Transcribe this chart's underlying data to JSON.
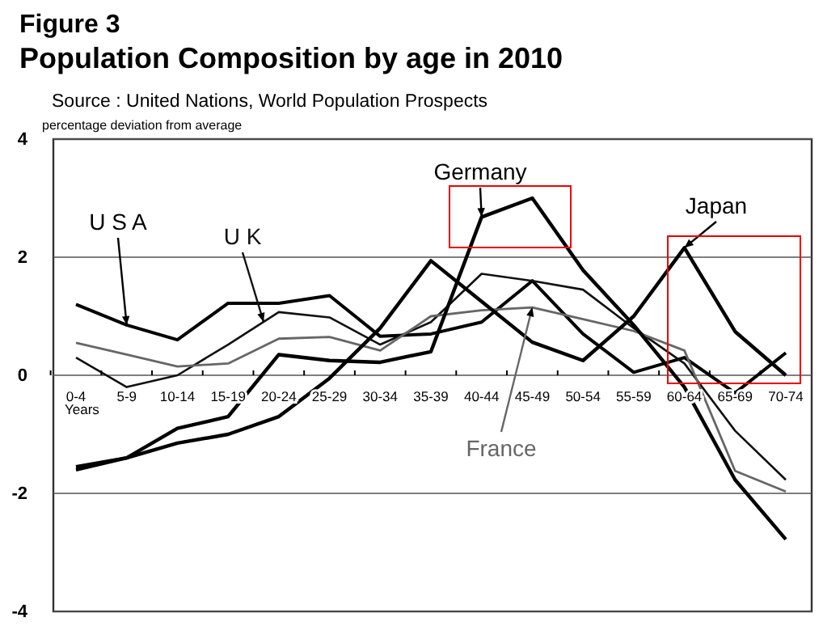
{
  "chart_data": {
    "type": "line",
    "title": "Figure 3",
    "subtitle": "Population Composition by age in 2010",
    "ylabel": "percentage deviation from average",
    "annotations": [
      "Source : United Nations, World Population Prospects",
      "Years"
    ],
    "categories": [
      "0-4",
      "5-9",
      "10-14",
      "15-19",
      "20-24",
      "25-29",
      "30-34",
      "35-39",
      "40-44",
      "45-49",
      "50-54",
      "55-59",
      "60-64",
      "65-69",
      "70-74"
    ],
    "ylim": [
      -4,
      4
    ],
    "yticks": [
      -4,
      -2,
      0,
      2,
      4
    ],
    "grid": "y",
    "marker": "none",
    "line_style": "solid",
    "series": [
      {
        "name": "U S A",
        "color": "#000000",
        "values": [
          1.2,
          0.85,
          0.6,
          1.22,
          1.22,
          1.35,
          0.66,
          0.7,
          0.9,
          1.6,
          0.7,
          0.05,
          0.3,
          -0.3,
          0.38
        ]
      },
      {
        "name": "U K",
        "color": "#111111",
        "values": [
          0.3,
          -0.2,
          0,
          0.52,
          1.07,
          0.98,
          0.52,
          0.9,
          1.72,
          1.6,
          1.45,
          0.8,
          0.2,
          -0.94,
          -1.77
        ]
      },
      {
        "name": "France",
        "color": "#666666",
        "values": [
          0.55,
          0.35,
          0.15,
          0.2,
          0.62,
          0.65,
          0.42,
          1.0,
          1.1,
          1.15,
          0.95,
          0.75,
          0.42,
          -1.62,
          -1.97
        ]
      },
      {
        "name": "Germany",
        "color": "#000000",
        "values": [
          -1.55,
          -1.4,
          -0.9,
          -0.7,
          0.35,
          0.25,
          0.22,
          0.4,
          2.68,
          3.0,
          1.78,
          0.85,
          -0.2,
          -1.77,
          -2.78
        ]
      },
      {
        "name": "Japan",
        "color": "#000000",
        "values": [
          -1.6,
          -1.4,
          -1.15,
          -1.0,
          -0.7,
          -0.05,
          0.8,
          1.94,
          1.25,
          0.56,
          0.25,
          1.0,
          2.16,
          0.74,
          0.0
        ]
      }
    ]
  }
}
